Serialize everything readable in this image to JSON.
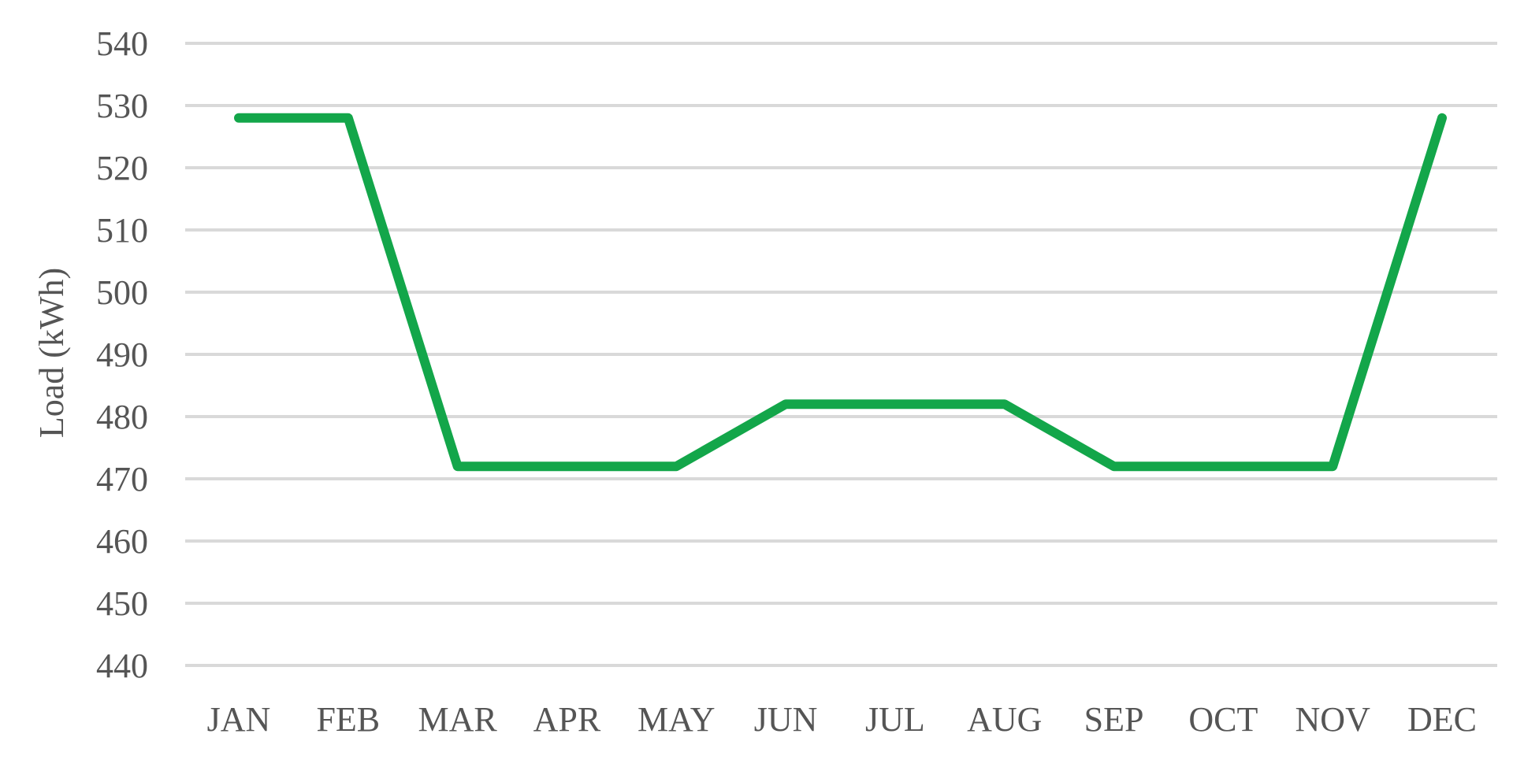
{
  "chart_data": {
    "type": "line",
    "title": "",
    "xlabel": "",
    "ylabel": "Load (kWh)",
    "categories": [
      "JAN",
      "FEB",
      "MAR",
      "APR",
      "MAY",
      "JUN",
      "JUL",
      "AUG",
      "SEP",
      "OCT",
      "NOV",
      "DEC"
    ],
    "series": [
      {
        "color": "#13a64a",
        "values": [
          528,
          528,
          472,
          472,
          472,
          482,
          482,
          482,
          472,
          472,
          472,
          528
        ]
      }
    ],
    "ylim": [
      440,
      540
    ],
    "yticks": [
      "440",
      "450",
      "460",
      "470",
      "480",
      "490",
      "500",
      "510",
      "520",
      "530",
      "540"
    ],
    "grid": true,
    "legend": "none"
  }
}
